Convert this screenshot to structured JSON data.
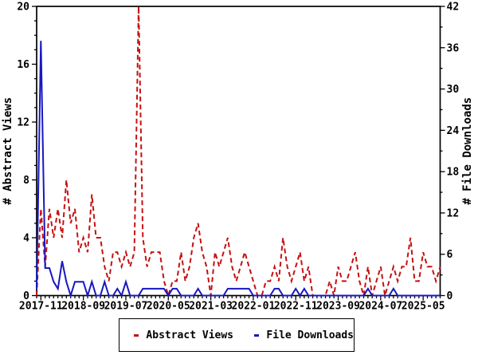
{
  "figure": {
    "background": "#ffffff",
    "axis_color": "#000000"
  },
  "chart_data": {
    "type": "line",
    "title": "",
    "x_axis": {
      "tick_labels": [
        "2017-11",
        "2018-09",
        "2019-07",
        "2020-05",
        "2021-03",
        "2022-01",
        "2022-11",
        "2023-09",
        "2024-07",
        "2025-05"
      ],
      "tick_month_step": 10,
      "minor_tick_every_months": 1,
      "months": [
        "2017-10",
        "2017-11",
        "2017-12",
        "2018-01",
        "2018-02",
        "2018-03",
        "2018-04",
        "2018-05",
        "2018-06",
        "2018-07",
        "2018-08",
        "2018-09",
        "2018-10",
        "2018-11",
        "2018-12",
        "2019-01",
        "2019-02",
        "2019-03",
        "2019-04",
        "2019-05",
        "2019-06",
        "2019-07",
        "2019-08",
        "2019-09",
        "2019-10",
        "2019-11",
        "2019-12",
        "2020-01",
        "2020-02",
        "2020-03",
        "2020-04",
        "2020-05",
        "2020-06",
        "2020-07",
        "2020-08",
        "2020-09",
        "2020-10",
        "2020-11",
        "2020-12",
        "2021-01",
        "2021-02",
        "2021-03",
        "2021-04",
        "2021-05",
        "2021-06",
        "2021-07",
        "2021-08",
        "2021-09",
        "2021-10",
        "2021-11",
        "2021-12",
        "2022-01",
        "2022-02",
        "2022-03",
        "2022-04",
        "2022-05",
        "2022-06",
        "2022-07",
        "2022-08",
        "2022-09",
        "2022-10",
        "2022-11",
        "2022-12",
        "2023-01",
        "2023-02",
        "2023-03",
        "2023-04",
        "2023-05",
        "2023-06",
        "2023-07",
        "2023-08",
        "2023-09",
        "2023-10",
        "2023-11",
        "2023-12",
        "2024-01",
        "2024-02",
        "2024-03",
        "2024-04",
        "2024-05",
        "2024-06",
        "2024-07",
        "2024-08",
        "2024-09",
        "2024-10",
        "2024-11",
        "2024-12",
        "2025-01",
        "2025-02",
        "2025-03",
        "2025-04",
        "2025-05",
        "2025-06",
        "2025-07",
        "2025-08",
        "2025-09"
      ]
    },
    "y_left": {
      "label": "# Abstract Views",
      "min": 0,
      "max": 20,
      "major_step": 4,
      "minor_step": 1,
      "ticks": [
        0,
        4,
        8,
        12,
        16,
        20
      ]
    },
    "y_right": {
      "label": "# File Downloads",
      "min": 0,
      "max": 42,
      "major_step": 6,
      "minor_step": 3,
      "ticks": [
        0,
        6,
        12,
        18,
        24,
        30,
        36,
        42
      ]
    },
    "series": [
      {
        "name": "Abstract Views",
        "axis": "left",
        "color": "#c41111",
        "style": "dashed",
        "values": [
          0,
          6,
          2,
          6,
          4,
          6,
          4,
          8,
          5,
          6,
          3,
          4,
          3,
          7,
          4,
          4,
          2,
          1,
          3,
          3,
          2,
          3,
          2,
          3,
          20,
          4,
          2,
          3,
          3,
          3,
          1,
          0,
          1,
          1,
          3,
          1,
          2,
          4,
          5,
          3,
          2,
          0,
          3,
          2,
          3,
          4,
          2,
          1,
          2,
          3,
          2,
          1,
          0,
          0,
          1,
          1,
          2,
          1,
          4,
          2,
          1,
          2,
          3,
          1,
          2,
          0,
          0,
          0,
          0,
          1,
          0,
          2,
          1,
          1,
          2,
          3,
          1,
          0,
          2,
          0,
          1,
          2,
          0,
          1,
          2,
          1,
          2,
          2,
          4,
          1,
          1,
          3,
          2,
          2,
          1,
          2
        ]
      },
      {
        "name": "File Downloads",
        "axis": "right",
        "color": "#1717c1",
        "style": "solid",
        "values": [
          1,
          37,
          4,
          4,
          2,
          1,
          5,
          2,
          0,
          2,
          2,
          2,
          0,
          2,
          0,
          0,
          2,
          0,
          0,
          1,
          0,
          2,
          0,
          0,
          0,
          1,
          1,
          1,
          1,
          1,
          1,
          0,
          1,
          1,
          0,
          0,
          0,
          0,
          1,
          0,
          0,
          0,
          0,
          0,
          0,
          1,
          1,
          1,
          1,
          1,
          1,
          0,
          0,
          0,
          0,
          0,
          1,
          1,
          0,
          0,
          0,
          1,
          0,
          1,
          0,
          0,
          0,
          0,
          0,
          0,
          0,
          0,
          0,
          0,
          0,
          0,
          0,
          0,
          1,
          0,
          0,
          0,
          0,
          0,
          1,
          0,
          0,
          0,
          0,
          0,
          0,
          0,
          0,
          0,
          0,
          0
        ]
      }
    ],
    "legend": {
      "position": "bottom",
      "entries": [
        "Abstract Views",
        "File Downloads"
      ]
    }
  }
}
